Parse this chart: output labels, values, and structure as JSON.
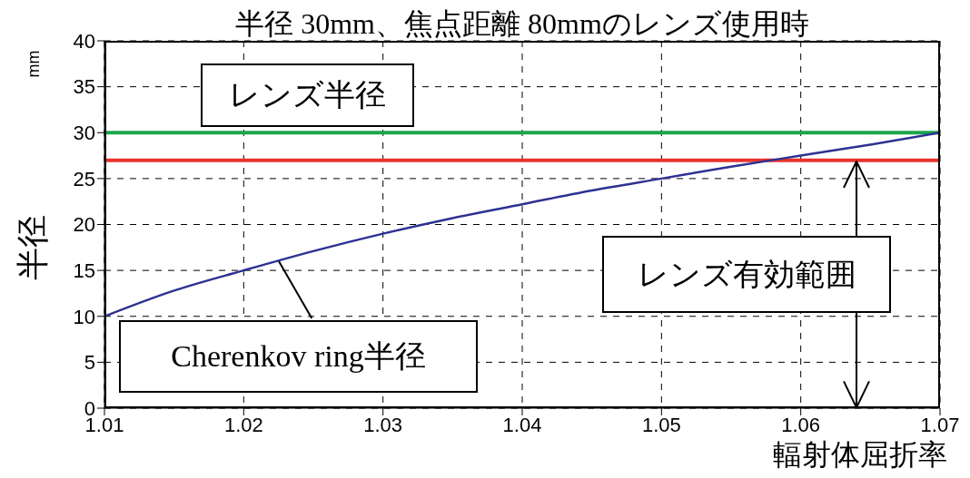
{
  "chart_data": {
    "type": "line",
    "title": "半径 30mm、焦点距離 80mmのレンズ使用時",
    "xlabel": "輻射体屈折率",
    "ylabel": "半径",
    "x": [
      1.01,
      1.015,
      1.02,
      1.025,
      1.03,
      1.035,
      1.04,
      1.045,
      1.05,
      1.055,
      1.06,
      1.065,
      1.07
    ],
    "series": [
      {
        "color": "#2e3192",
        "values": [
          10,
          12.8,
          15,
          17.1,
          19,
          20.7,
          22.2,
          23.7,
          25,
          26.3,
          27.5,
          28.7,
          30
        ]
      }
    ],
    "xlim": [
      1.01,
      1.07
    ],
    "xticks": [
      1.01,
      1.02,
      1.03,
      1.04,
      1.05,
      1.06,
      1.07
    ],
    "ylim": [
      0,
      40
    ],
    "yticks": [
      0,
      5,
      10,
      15,
      20,
      25,
      30,
      35,
      40
    ],
    "grid": true,
    "legend": false,
    "marker": "none",
    "line_style": "solid",
    "ref_lines": [
      {
        "axis": "y",
        "value": 30,
        "label": "レンズ半径",
        "color": "#1aa64a"
      },
      {
        "axis": "y",
        "value": 27,
        "color": "#e8322d"
      }
    ],
    "annotations": [
      "mm",
      {
        "text": "Cherenkov ring半径",
        "x": 1.0225,
        "y": 16
      },
      "レンズ有効範囲"
    ]
  }
}
